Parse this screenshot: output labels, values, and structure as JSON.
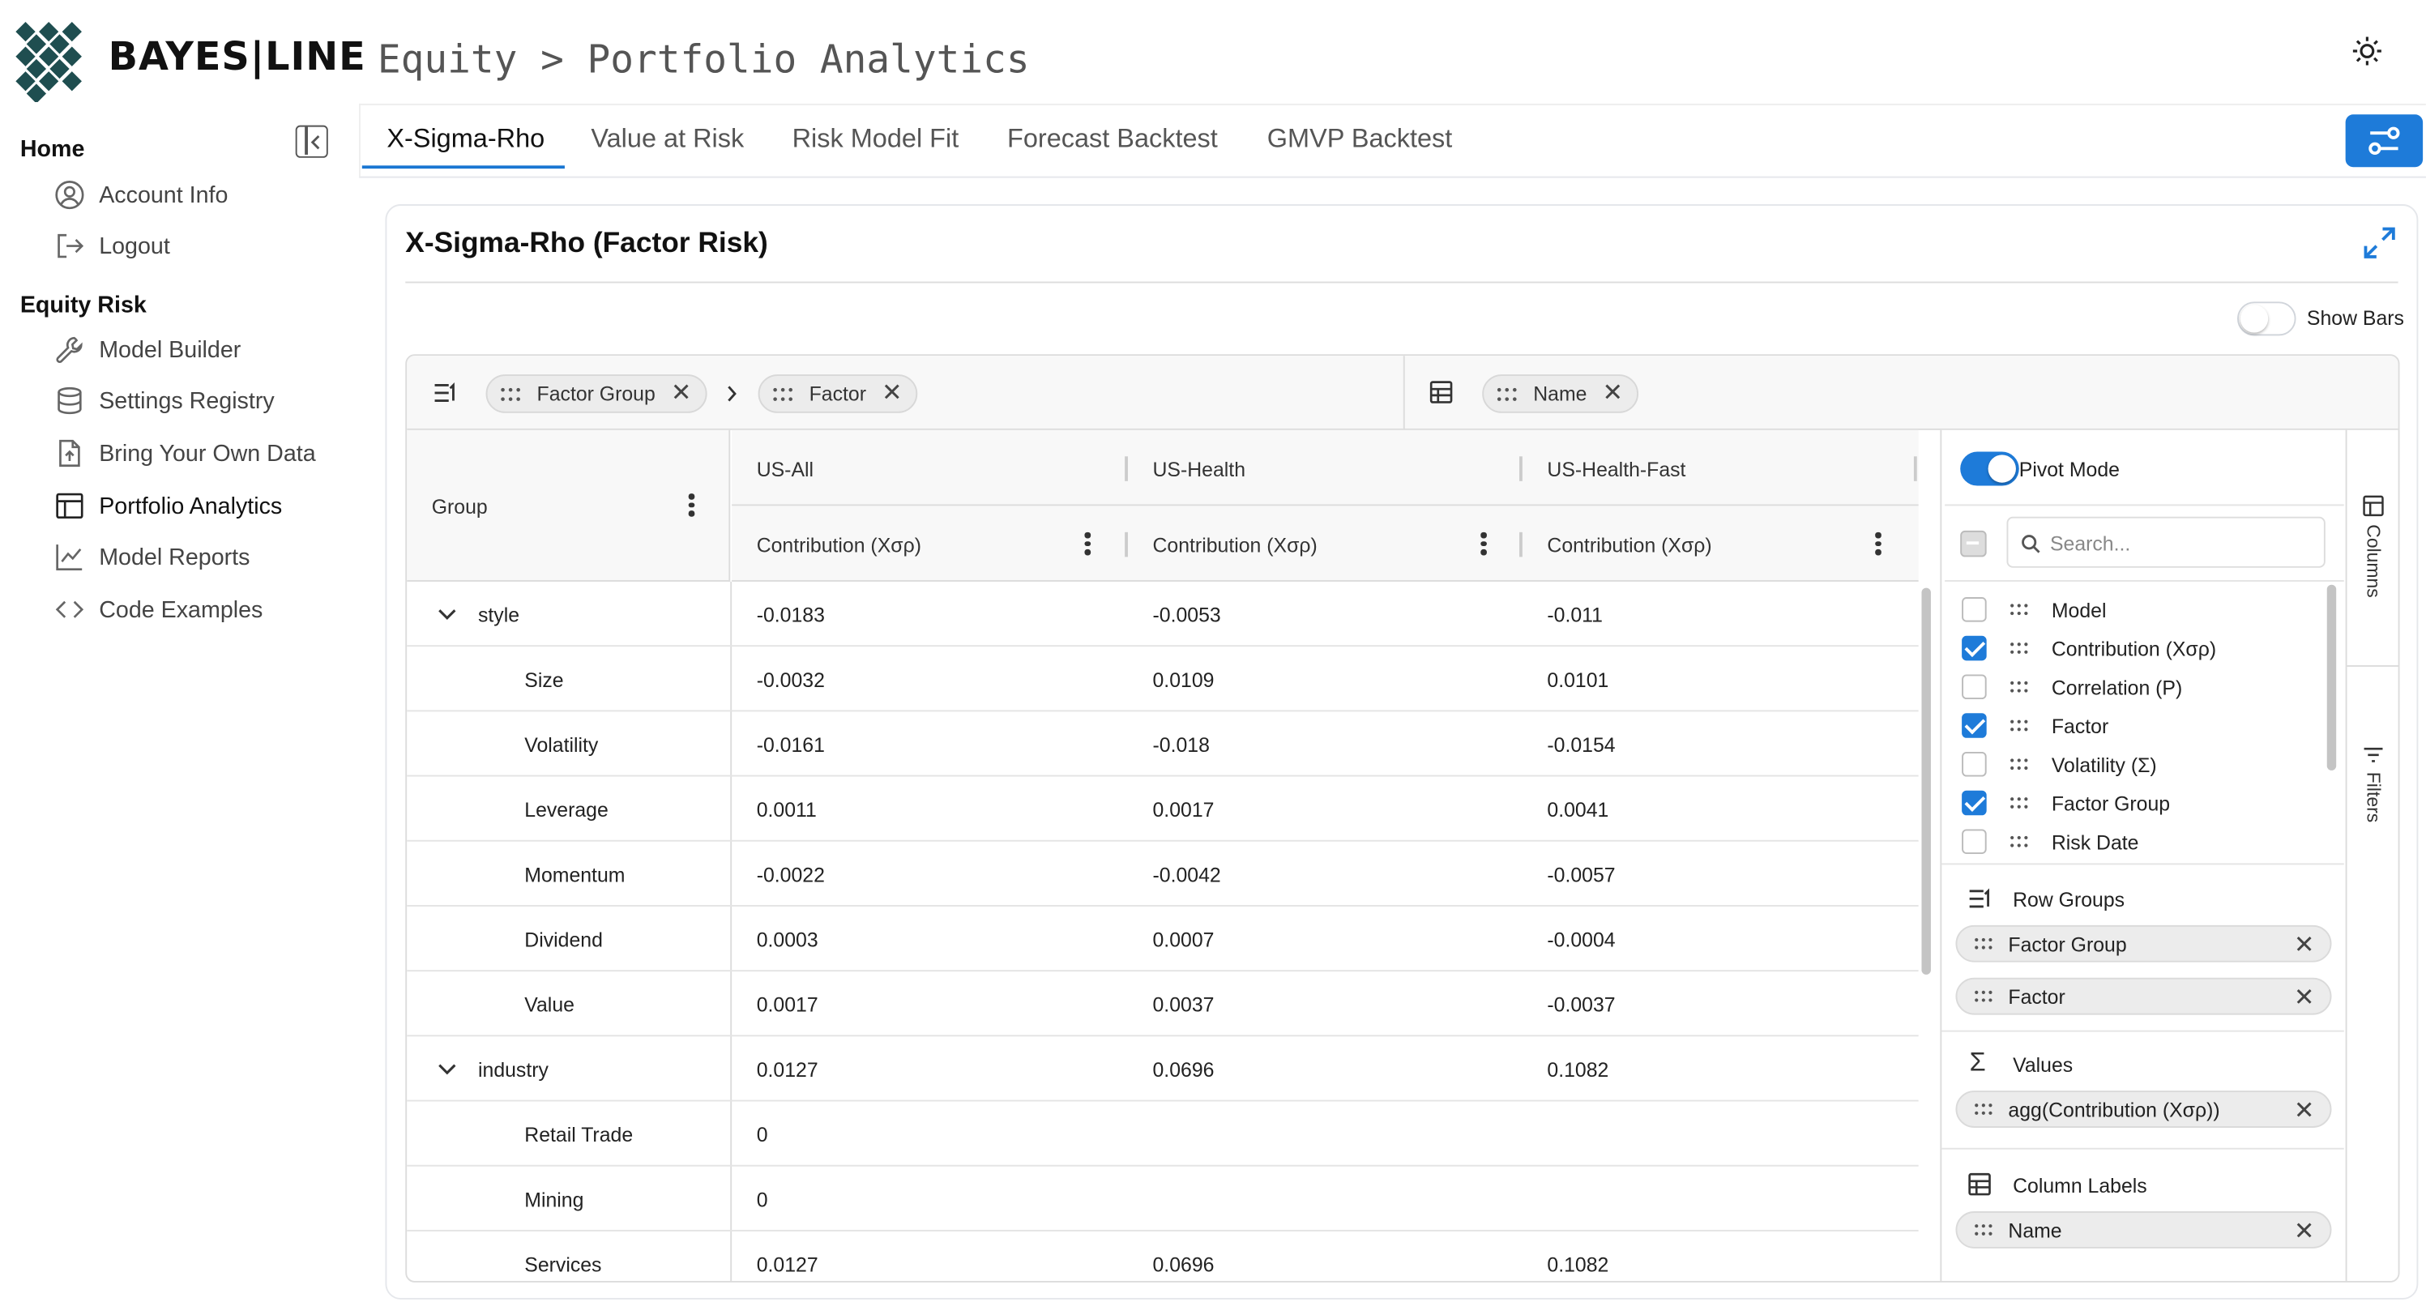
{
  "brand": {
    "name": "BAYES|LINE"
  },
  "breadcrumb": {
    "text": "Equity > Portfolio Analytics"
  },
  "sidebar": {
    "home": {
      "heading": "Home",
      "items": [
        {
          "label": "Account Info",
          "icon": "user-circle-icon"
        },
        {
          "label": "Logout",
          "icon": "logout-icon"
        }
      ]
    },
    "equity_risk": {
      "heading": "Equity Risk",
      "items": [
        {
          "label": "Model Builder",
          "icon": "wrench-icon"
        },
        {
          "label": "Settings Registry",
          "icon": "database-icon"
        },
        {
          "label": "Bring Your Own Data",
          "icon": "file-upload-icon"
        },
        {
          "label": "Portfolio Analytics",
          "icon": "table-icon",
          "active": true
        },
        {
          "label": "Model Reports",
          "icon": "line-chart-icon"
        },
        {
          "label": "Code Examples",
          "icon": "code-icon"
        }
      ]
    }
  },
  "tabs": [
    {
      "label": "X-Sigma-Rho",
      "active": true
    },
    {
      "label": "Value at Risk"
    },
    {
      "label": "Risk Model Fit"
    },
    {
      "label": "Forecast Backtest"
    },
    {
      "label": "GMVP Backtest"
    }
  ],
  "card": {
    "title": "X-Sigma-Rho (Factor Risk)",
    "show_bars_label": "Show Bars",
    "show_bars": false
  },
  "pivot": {
    "row_group_chips": [
      "Factor Group",
      "Factor"
    ],
    "column_chips": [
      "Name"
    ]
  },
  "grid": {
    "group_header": "Group",
    "columns": [
      {
        "name": "US-All",
        "measure": "Contribution (Xσρ)"
      },
      {
        "name": "US-Health",
        "measure": "Contribution (Xσρ)"
      },
      {
        "name": "US-Health-Fast",
        "measure": "Contribution (Xσρ)"
      }
    ],
    "rows": [
      {
        "label": "style",
        "group": true,
        "values": [
          "-0.0183",
          "-0.0053",
          "-0.011"
        ]
      },
      {
        "label": "Size",
        "values": [
          "-0.0032",
          "0.0109",
          "0.0101"
        ]
      },
      {
        "label": "Volatility",
        "values": [
          "-0.0161",
          "-0.018",
          "-0.0154"
        ]
      },
      {
        "label": "Leverage",
        "values": [
          "0.0011",
          "0.0017",
          "0.0041"
        ]
      },
      {
        "label": "Momentum",
        "values": [
          "-0.0022",
          "-0.0042",
          "-0.0057"
        ]
      },
      {
        "label": "Dividend",
        "values": [
          "0.0003",
          "0.0007",
          "-0.0004"
        ]
      },
      {
        "label": "Value",
        "values": [
          "0.0017",
          "0.0037",
          "-0.0037"
        ]
      },
      {
        "label": "industry",
        "group": true,
        "values": [
          "0.0127",
          "0.0696",
          "0.1082"
        ]
      },
      {
        "label": "Retail Trade",
        "values": [
          "0",
          "",
          ""
        ]
      },
      {
        "label": "Mining",
        "values": [
          "0",
          "",
          ""
        ]
      },
      {
        "label": "Services",
        "values": [
          "0.0127",
          "0.0696",
          "0.1082"
        ]
      }
    ]
  },
  "tool_panel": {
    "pivot_mode_label": "Pivot Mode",
    "pivot_mode": true,
    "search_placeholder": "Search...",
    "column_list": [
      {
        "label": "Model",
        "checked": false
      },
      {
        "label": "Contribution (Xσρ)",
        "checked": true
      },
      {
        "label": "Correlation (Ρ)",
        "checked": false
      },
      {
        "label": "Factor",
        "checked": true
      },
      {
        "label": "Volatility (Σ)",
        "checked": false
      },
      {
        "label": "Factor Group",
        "checked": true
      },
      {
        "label": "Risk Date",
        "checked": false
      }
    ],
    "row_groups": {
      "title": "Row Groups",
      "items": [
        "Factor Group",
        "Factor"
      ]
    },
    "values": {
      "title": "Values",
      "items": [
        "agg(Contribution (Xσρ))"
      ]
    },
    "column_labels": {
      "title": "Column Labels",
      "items": [
        "Name"
      ]
    },
    "side_tabs": [
      "Columns",
      "Filters"
    ]
  },
  "colors": {
    "accent": "#1e7bd9",
    "logo": "#1f4e50"
  }
}
